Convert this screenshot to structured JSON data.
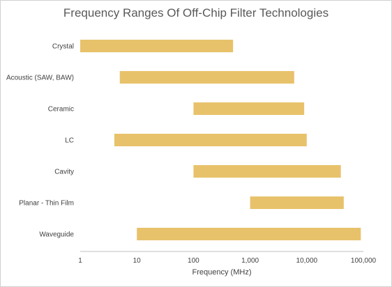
{
  "chart_data": {
    "type": "bar",
    "orientation": "horizontal",
    "title": "Frequency Ranges Of Off-Chip Filter Technologies",
    "xlabel": "Frequency (MHz)",
    "ylabel": "",
    "x_scale": "log",
    "xlim": [
      1,
      100000
    ],
    "x_ticks": [
      "1",
      "10",
      "100",
      "1,000",
      "10,000",
      "100,000"
    ],
    "grid": false,
    "legend": "none",
    "bar_color": "#E8C26B",
    "categories": [
      "Crystal",
      "Acoustic (SAW, BAW)",
      "Ceramic",
      "LC",
      "Cavity",
      "Planar - Thin Film",
      "Waveguide"
    ],
    "ranges": [
      {
        "min": 1,
        "max": 500
      },
      {
        "min": 5,
        "max": 6000
      },
      {
        "min": 100,
        "max": 9000
      },
      {
        "min": 4,
        "max": 10000
      },
      {
        "min": 100,
        "max": 40000
      },
      {
        "min": 1000,
        "max": 45000
      },
      {
        "min": 10,
        "max": 90000
      }
    ]
  }
}
